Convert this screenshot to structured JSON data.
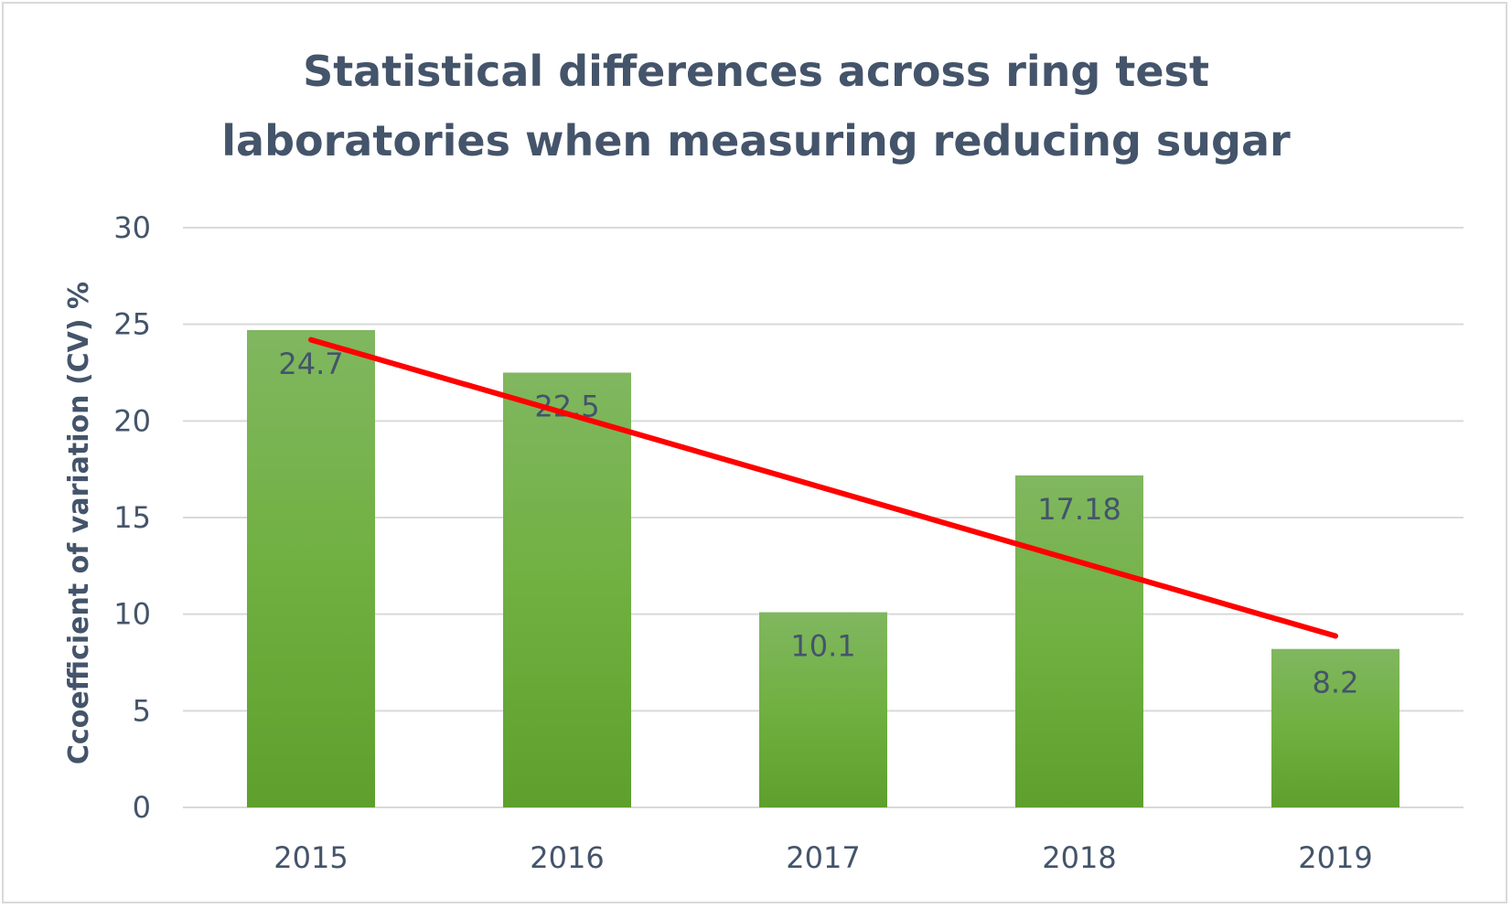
{
  "chart_data": {
    "type": "bar",
    "title_lines": [
      "Statistical differences across ring test",
      "laboratories when measuring reducing sugar"
    ],
    "xlabel": "",
    "ylabel": "Ccoefficient of variation (CV) %",
    "categories": [
      "2015",
      "2016",
      "2017",
      "2018",
      "2019"
    ],
    "series": [
      {
        "values": [
          24.7,
          22.5,
          10.1,
          17.18,
          8.2
        ],
        "data_labels": [
          "24.7",
          "22.5",
          "10.1",
          "17.18",
          "8.2"
        ],
        "color": "#70ad47"
      }
    ],
    "trendline": {
      "type": "linear",
      "color": "#ff0000"
    },
    "ylim": [
      0,
      30
    ],
    "yticks": [
      0,
      5,
      10,
      15,
      20,
      25,
      30
    ],
    "grid": true,
    "legend": "none"
  }
}
